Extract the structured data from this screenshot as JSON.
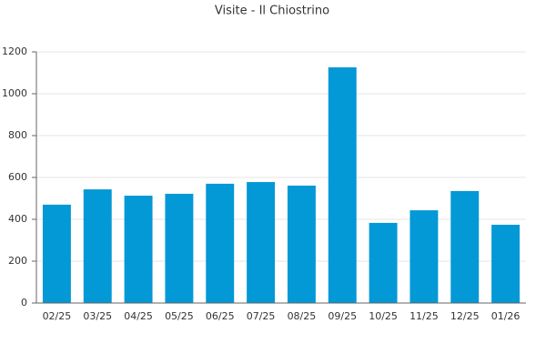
{
  "chart_data": {
    "type": "bar",
    "title": "Visite - Il Chiostrino",
    "categories": [
      "02/25",
      "03/25",
      "04/25",
      "05/25",
      "06/25",
      "07/25",
      "08/25",
      "09/25",
      "10/25",
      "11/25",
      "12/25",
      "01/26"
    ],
    "values": [
      470,
      543,
      513,
      522,
      570,
      578,
      561,
      1126,
      383,
      443,
      535,
      374
    ],
    "color": "#0398d6",
    "ylim": [
      0,
      1200
    ],
    "yticks": [
      0,
      200,
      400,
      600,
      800,
      1000,
      1200
    ],
    "grid": true
  }
}
